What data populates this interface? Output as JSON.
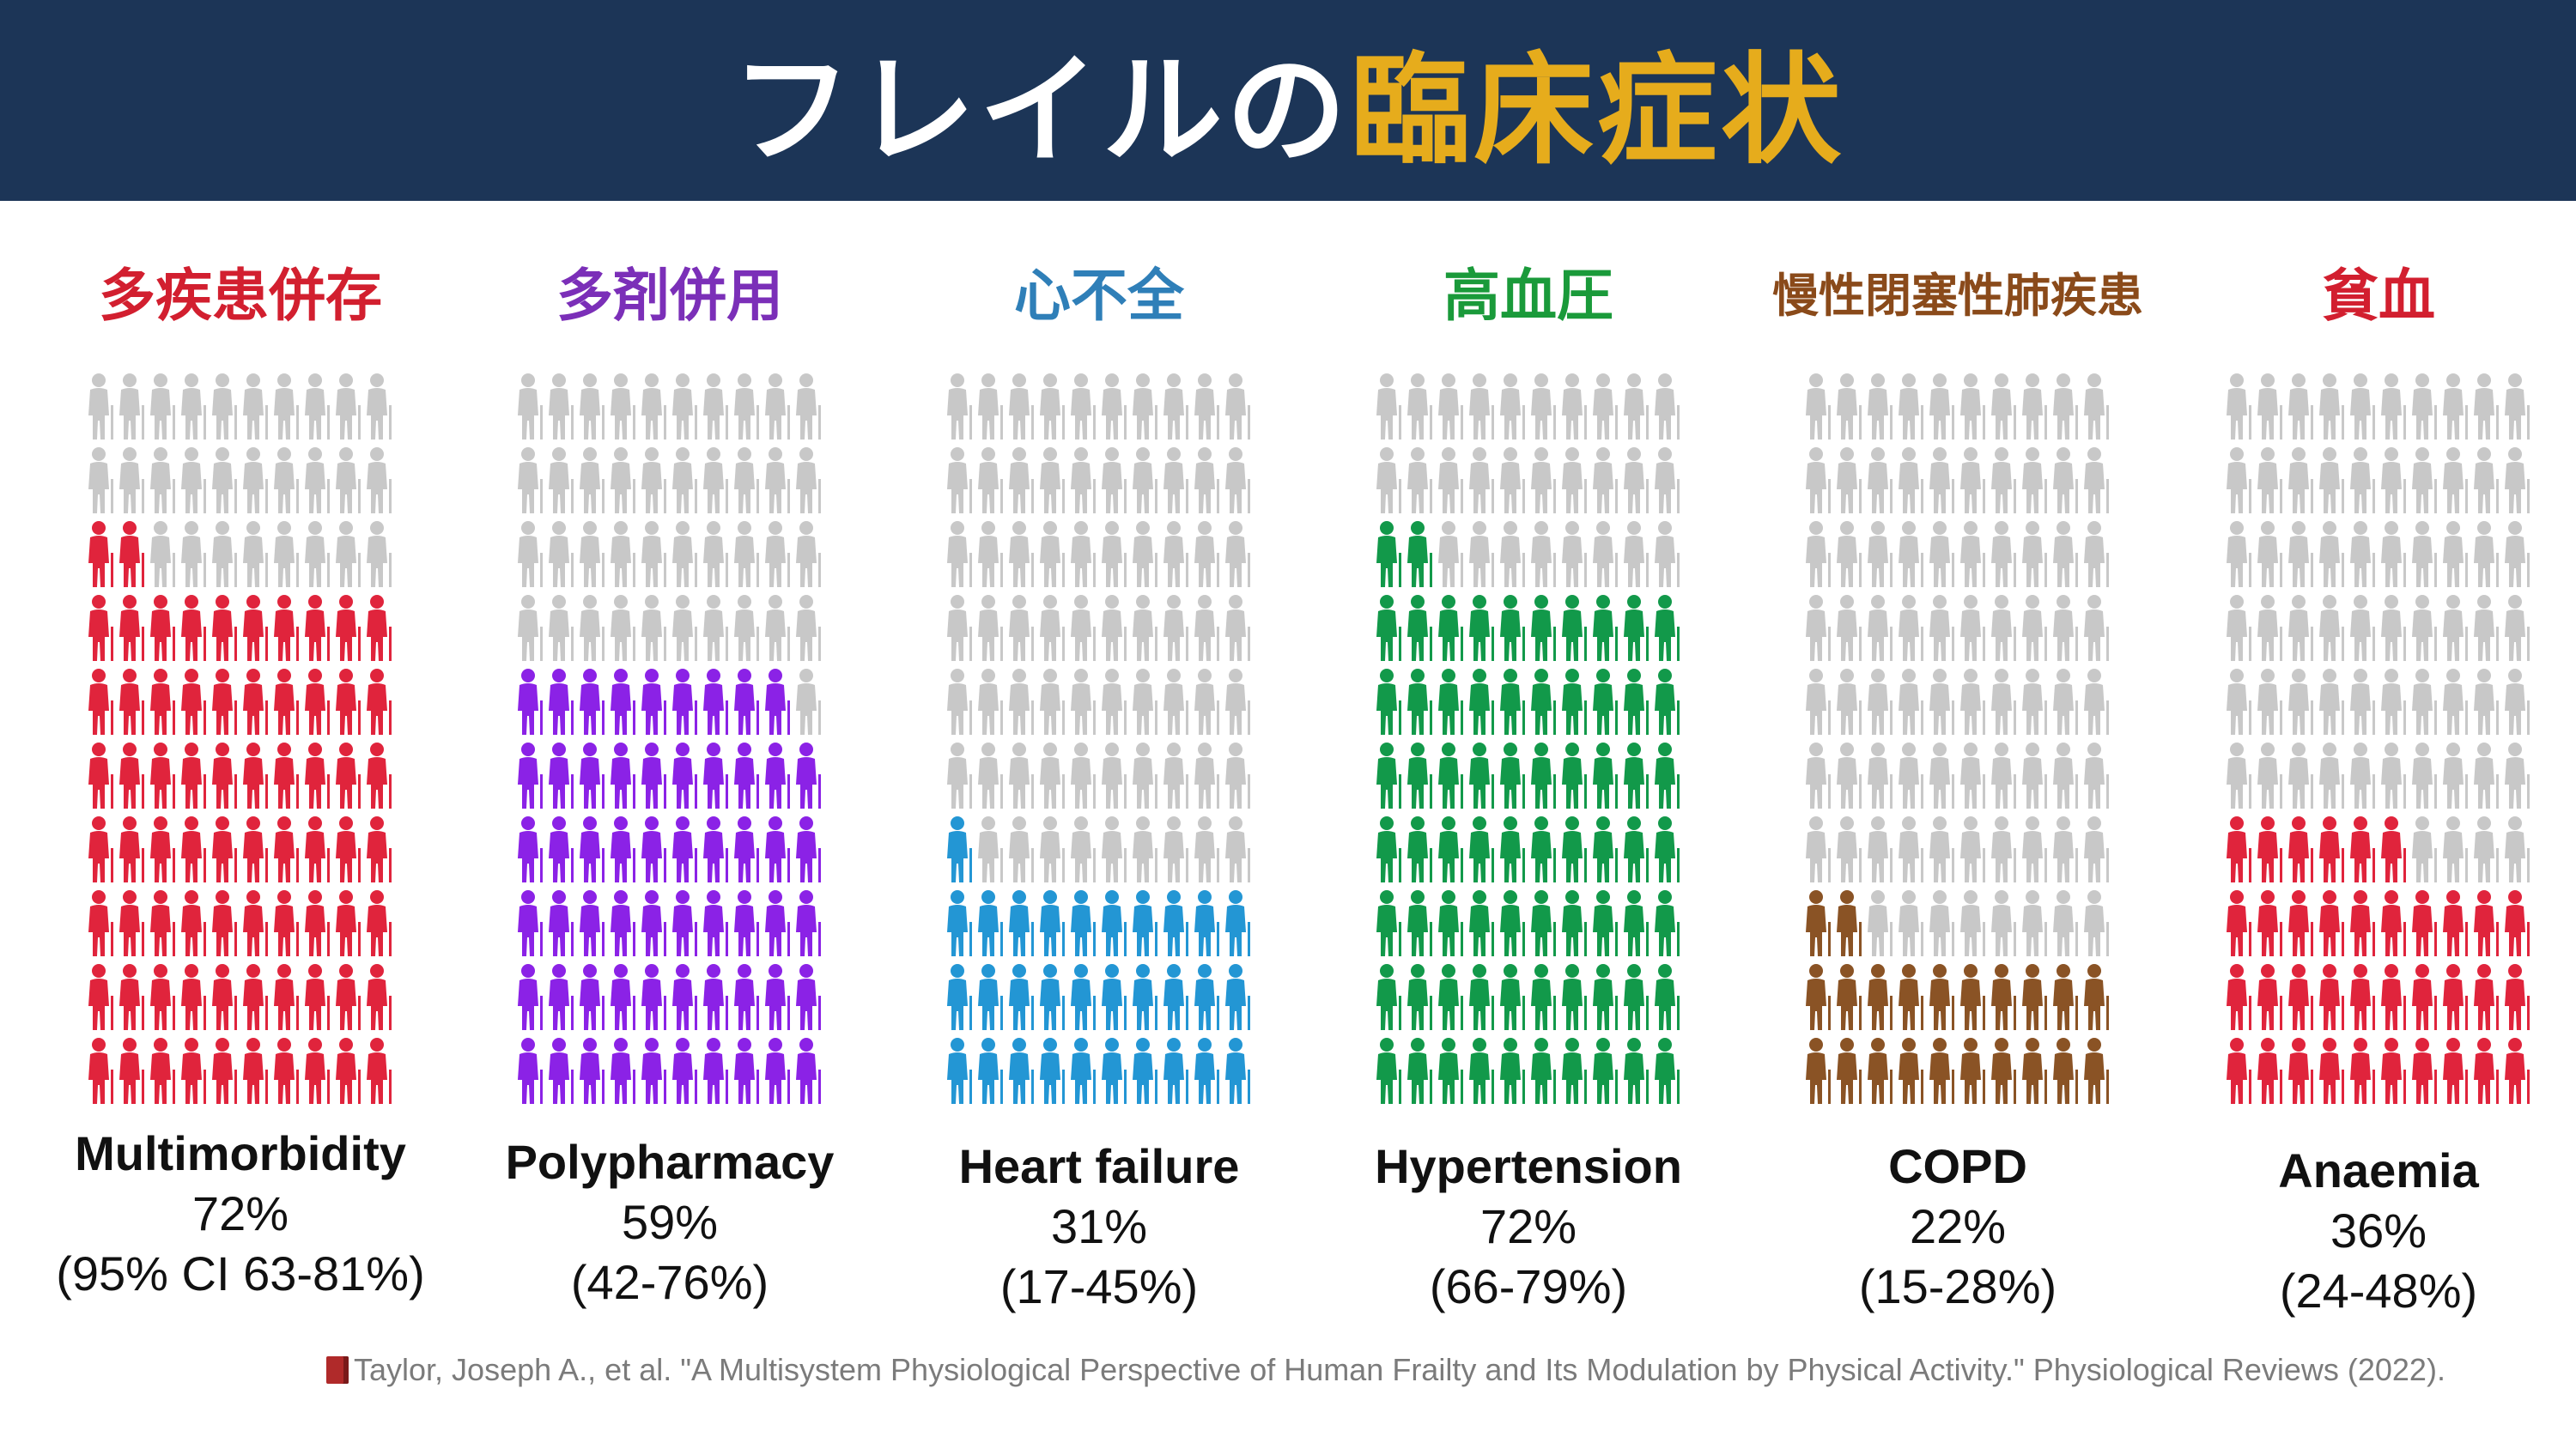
{
  "header": {
    "title_main": "フレイルの",
    "title_accent": "臨床症状"
  },
  "chart_data": {
    "type": "icon-array",
    "total_per_panel": 100,
    "grid": {
      "columns": 10,
      "rows": 10
    },
    "inactive_color": "#c8c8c8",
    "panels": [
      {
        "jp_label": "多疾患併存",
        "en_label": "Multimorbidity",
        "value": 72,
        "value_text": "72%",
        "ci_text": "(95% CI 63-81%)",
        "color": "#e0243c"
      },
      {
        "jp_label": "多剤併用",
        "en_label": "Polypharmacy",
        "value": 59,
        "value_text": "59%",
        "ci_text": "(42-76%)",
        "color": "#8b22e6"
      },
      {
        "jp_label": "心不全",
        "en_label": "Heart failure",
        "value": 31,
        "value_text": "31%",
        "ci_text": "(17-45%)",
        "color": "#2396d4"
      },
      {
        "jp_label": "高血圧",
        "en_label": "Hypertension",
        "value": 72,
        "value_text": "72%",
        "ci_text": "(66-79%)",
        "color": "#12994a"
      },
      {
        "jp_label": "慢性閉塞性肺疾患",
        "en_label": "COPD",
        "value": 22,
        "value_text": "22%",
        "ci_text": "(15-28%)",
        "color": "#8a5325"
      },
      {
        "jp_label": "貧血",
        "en_label": "Anaemia",
        "value": 36,
        "value_text": "36%",
        "ci_text": "(24-48%)",
        "color": "#e0243c"
      }
    ]
  },
  "label_colors": {
    "multimorbidity": "#d21f2f",
    "polypharmacy": "#7b2fb8",
    "heart_failure": "#2f7fb8",
    "hypertension": "#1a9a3a",
    "copd": "#8a4a1a",
    "anaemia": "#d21f2f"
  },
  "citation": {
    "icon": "book-icon",
    "text": "Taylor, Joseph A., et al. \"A Multisystem Physiological Perspective of Human Frailty and Its Modulation by Physical Activity.\" Physiological Reviews (2022)."
  }
}
